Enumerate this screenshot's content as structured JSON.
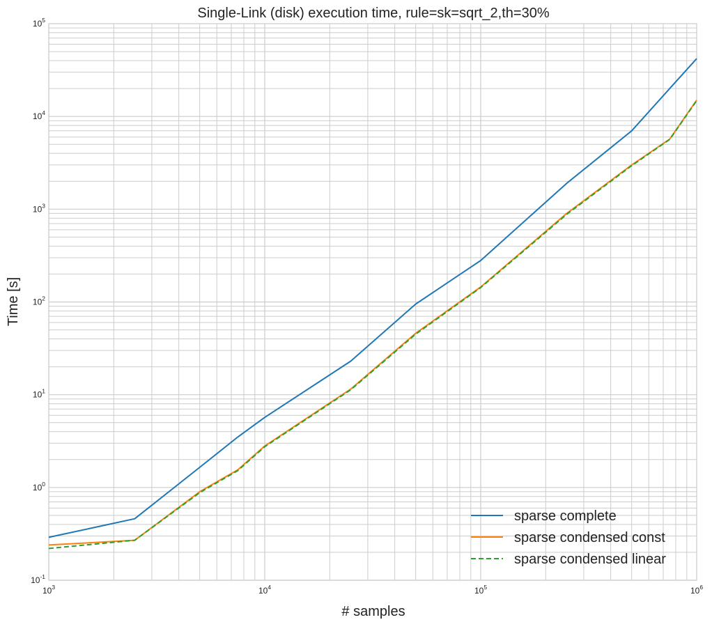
{
  "chart_data": {
    "type": "line",
    "title": "Single-Link (disk) execution time, rule=sk=sqrt_2,th=30%",
    "xlabel": "# samples",
    "ylabel": "Time [s]",
    "xscale": "log",
    "yscale": "log",
    "xlim": [
      1000,
      1000000
    ],
    "ylim": [
      0.1,
      100000
    ],
    "grid": true,
    "legend_position": "bottom-right",
    "x_ticks": [
      {
        "base": "10",
        "exp": "3",
        "value": 1000
      },
      {
        "base": "10",
        "exp": "4",
        "value": 10000
      },
      {
        "base": "10",
        "exp": "5",
        "value": 100000
      },
      {
        "base": "10",
        "exp": "6",
        "value": 1000000
      }
    ],
    "y_ticks": [
      {
        "base": "10",
        "exp": "-1",
        "value": 0.1
      },
      {
        "base": "10",
        "exp": "0",
        "value": 1
      },
      {
        "base": "10",
        "exp": "1",
        "value": 10
      },
      {
        "base": "10",
        "exp": "2",
        "value": 100
      },
      {
        "base": "10",
        "exp": "3",
        "value": 1000
      },
      {
        "base": "10",
        "exp": "4",
        "value": 10000
      },
      {
        "base": "10",
        "exp": "5",
        "value": 100000
      }
    ],
    "series": [
      {
        "name": "sparse complete",
        "color": "#1f77b4",
        "style": "solid",
        "x": [
          1000,
          2500,
          5000,
          7500,
          10000,
          25000,
          50000,
          100000,
          250000,
          500000,
          750000,
          1000000
        ],
        "y": [
          0.29,
          0.46,
          1.65,
          3.5,
          5.7,
          23,
          95,
          280,
          1900,
          7000,
          20000,
          42000
        ]
      },
      {
        "name": "sparse condensed const",
        "color": "#ff7f0e",
        "style": "solid",
        "x": [
          1000,
          2500,
          5000,
          7500,
          10000,
          25000,
          50000,
          100000,
          250000,
          500000,
          750000,
          1000000
        ],
        "y": [
          0.24,
          0.27,
          0.9,
          1.55,
          2.8,
          11.5,
          46,
          145,
          900,
          3000,
          5700,
          15000
        ]
      },
      {
        "name": "sparse condensed linear",
        "color": "#2ca02c",
        "style": "dashed",
        "x": [
          1000,
          2500,
          5000,
          7500,
          10000,
          25000,
          50000,
          100000,
          250000,
          500000,
          750000,
          1000000
        ],
        "y": [
          0.22,
          0.27,
          0.88,
          1.52,
          2.75,
          11.3,
          45,
          143,
          880,
          2950,
          5650,
          14800
        ]
      }
    ]
  }
}
